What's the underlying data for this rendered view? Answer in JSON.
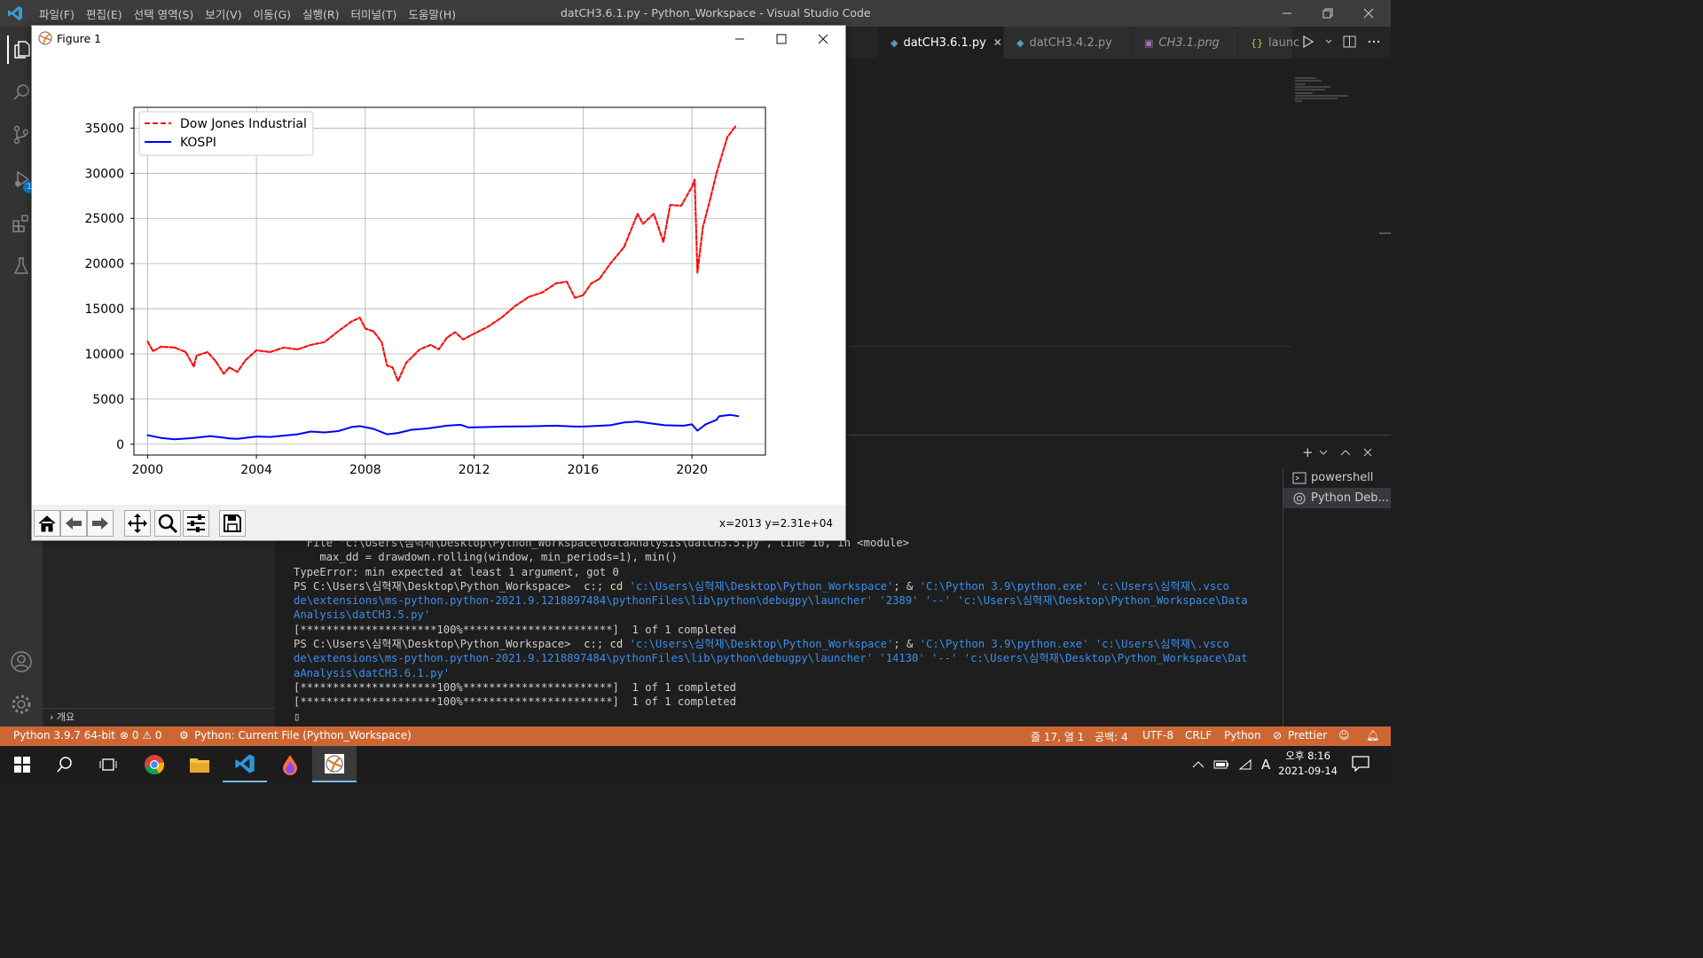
{
  "titlebar": {
    "menu": [
      "파일(F)",
      "편집(E)",
      "선택 영역(S)",
      "보기(V)",
      "이동(G)",
      "실행(R)",
      "터미널(T)",
      "도움말(H)"
    ],
    "title": "datCH3.6.1.py - Python_Workspace - Visual Studio Code"
  },
  "tabs": [
    {
      "label": "datCH3.6.1.py",
      "icon": "python-file-icon",
      "active": true,
      "close": "✕"
    },
    {
      "label": "datCH3.4.2.py",
      "icon": "python-file-icon",
      "active": false
    },
    {
      "label": "CH3.1.png",
      "icon": "image-file-icon",
      "active": false
    },
    {
      "label": "launc",
      "icon": "json-file-icon",
      "active": false
    }
  ],
  "sidebar": {
    "outline_label": "개요"
  },
  "figure": {
    "window_title": "Figure 1",
    "coords": "x=2013 y=2.31e+04",
    "toolbar": [
      "home-icon",
      "back-icon",
      "forward-icon",
      "pan-icon",
      "zoom-icon",
      "configure-icon",
      "save-icon"
    ]
  },
  "chart_data": {
    "type": "line",
    "title": "",
    "xlabel": "",
    "ylabel": "",
    "xlim": [
      1999.5,
      2022.7
    ],
    "ylim": [
      -1200,
      37300
    ],
    "xticks": [
      2000,
      2004,
      2008,
      2012,
      2016,
      2020
    ],
    "yticks": [
      0,
      5000,
      10000,
      15000,
      20000,
      25000,
      30000,
      35000
    ],
    "grid": true,
    "legend": "top-left",
    "series": [
      {
        "name": "Dow Jones Industrial",
        "color": "#ff0000",
        "style": "dashed",
        "x": [
          2000.0,
          2000.2,
          2000.5,
          2001.0,
          2001.4,
          2001.7,
          2001.8,
          2002.2,
          2002.5,
          2002.8,
          2003.0,
          2003.3,
          2003.6,
          2004.0,
          2004.5,
          2005.0,
          2005.5,
          2006.0,
          2006.5,
          2007.0,
          2007.5,
          2007.8,
          2008.0,
          2008.3,
          2008.6,
          2008.8,
          2009.0,
          2009.2,
          2009.5,
          2010.0,
          2010.4,
          2010.7,
          2011.0,
          2011.3,
          2011.6,
          2011.9,
          2012.5,
          2013.0,
          2013.5,
          2014.0,
          2014.5,
          2015.0,
          2015.4,
          2015.7,
          2016.0,
          2016.3,
          2016.6,
          2017.0,
          2017.5,
          2018.0,
          2018.2,
          2018.6,
          2018.95,
          2019.2,
          2019.6,
          2020.0,
          2020.1,
          2020.2,
          2020.4,
          2020.7,
          2020.9,
          2021.0,
          2021.3,
          2021.6
        ],
        "y": [
          11400,
          10300,
          10800,
          10700,
          10200,
          8600,
          9800,
          10200,
          9200,
          7800,
          8500,
          8000,
          9300,
          10400,
          10200,
          10700,
          10500,
          11000,
          11300,
          12500,
          13600,
          14000,
          12800,
          12500,
          11300,
          8700,
          8500,
          7000,
          9000,
          10500,
          11000,
          10500,
          11800,
          12400,
          11600,
          12100,
          13000,
          14000,
          15300,
          16300,
          16800,
          17800,
          18000,
          16200,
          16500,
          17800,
          18300,
          20000,
          21800,
          25500,
          24400,
          25500,
          22400,
          26500,
          26400,
          28500,
          29300,
          19000,
          24000,
          27500,
          30000,
          31000,
          34000,
          35200
        ]
      },
      {
        "name": "KOSPI",
        "color": "#0000ff",
        "style": "solid",
        "x": [
          2000.0,
          2000.5,
          2001.0,
          2001.7,
          2002.3,
          2003.0,
          2003.3,
          2004.0,
          2004.5,
          2005.0,
          2005.5,
          2006.0,
          2006.5,
          2007.0,
          2007.5,
          2007.8,
          2008.3,
          2008.8,
          2009.2,
          2009.7,
          2010.3,
          2011.0,
          2011.5,
          2011.8,
          2012.5,
          2013.0,
          2014.0,
          2015.0,
          2015.7,
          2016.0,
          2017.0,
          2017.5,
          2018.0,
          2018.5,
          2019.0,
          2019.7,
          2020.0,
          2020.2,
          2020.5,
          2020.9,
          2021.0,
          2021.4,
          2021.7
        ],
        "y": [
          1000,
          700,
          550,
          700,
          900,
          650,
          600,
          850,
          800,
          950,
          1100,
          1400,
          1300,
          1450,
          1900,
          2000,
          1700,
          1100,
          1250,
          1600,
          1750,
          2050,
          2150,
          1850,
          1900,
          1950,
          1980,
          2050,
          1950,
          1950,
          2100,
          2400,
          2500,
          2300,
          2100,
          2050,
          2200,
          1500,
          2200,
          2700,
          3100,
          3250,
          3100
        ]
      }
    ]
  },
  "terminal": {
    "lines": [
      [
        {
          "t": "  File \"c:\\Users\\심혁재\\Desktop\\Python_Workspace\\DataAnalysis\\datCH3.5.py\", line 10, in <module>",
          "c": ""
        }
      ],
      [
        {
          "t": "    max_dd = drawdown.rolling(window, min_periods=1), min()",
          "c": ""
        }
      ],
      [
        {
          "t": "TypeError: min expected at least 1 argument, got 0",
          "c": ""
        }
      ],
      [
        {
          "t": "PS C:\\Users\\심혁재\\Desktop\\Python_Workspace>  ",
          "c": ""
        },
        {
          "t": "c:",
          "c": "kw"
        },
        {
          "t": "; ",
          "c": ""
        },
        {
          "t": "cd",
          "c": "kw"
        },
        {
          "t": " 'c:\\Users\\심혁재\\Desktop\\Python_Workspace'",
          "c": "str"
        },
        {
          "t": "; & ",
          "c": ""
        },
        {
          "t": "'C:\\Python 3.9\\python.exe' 'c:\\Users\\심혁재\\.vsco",
          "c": "str"
        }
      ],
      [
        {
          "t": "de\\extensions\\ms-python.python-2021.9.1218897484\\pythonFiles\\lib\\python\\debugpy\\launcher' '2389' '--' 'c:\\Users\\심혁재\\Desktop\\Python_Workspace\\Data",
          "c": "str"
        }
      ],
      [
        {
          "t": "Analysis\\datCH3.5.py'",
          "c": "str"
        }
      ],
      [
        {
          "t": "[*********************100%***********************]  1 of 1 completed",
          "c": ""
        }
      ],
      [
        {
          "t": "PS C:\\Users\\심혁재\\Desktop\\Python_Workspace>  ",
          "c": ""
        },
        {
          "t": "c:",
          "c": "kw"
        },
        {
          "t": "; ",
          "c": ""
        },
        {
          "t": "cd",
          "c": "kw"
        },
        {
          "t": " 'c:\\Users\\심혁재\\Desktop\\Python_Workspace'",
          "c": "str"
        },
        {
          "t": "; & ",
          "c": ""
        },
        {
          "t": "'C:\\Python 3.9\\python.exe' 'c:\\Users\\심혁재\\.vsco",
          "c": "str"
        }
      ],
      [
        {
          "t": "de\\extensions\\ms-python.python-2021.9.1218897484\\pythonFiles\\lib\\python\\debugpy\\launcher' '14130' '--' 'c:\\Users\\심혁재\\Desktop\\Python_Workspace\\Dat",
          "c": "str"
        }
      ],
      [
        {
          "t": "aAnalysis\\datCH3.6.1.py'",
          "c": "str"
        }
      ],
      [
        {
          "t": "[*********************100%***********************]  1 of 1 completed",
          "c": ""
        }
      ],
      [
        {
          "t": "[*********************100%***********************]  1 of 1 completed",
          "c": ""
        }
      ],
      [
        {
          "t": "▯",
          "c": ""
        }
      ]
    ],
    "list": [
      {
        "label": "powershell",
        "icon": "terminal-icon",
        "selected": false
      },
      {
        "label": "Python Deb...",
        "icon": "debug-icon",
        "selected": true
      }
    ]
  },
  "statusbar": {
    "python": "Python 3.9.7 64-bit",
    "problems": "⊗ 0 ⚠ 0",
    "debug": "Python: Current File (Python_Workspace)",
    "position": "줄 17, 열 1",
    "spaces": "공백: 4",
    "encoding": "UTF-8",
    "eol": "CRLF",
    "language": "Python",
    "prettier": "Prettier"
  },
  "taskbar": {
    "time": "오후 8:16",
    "date": "2021-09-14",
    "ime": "A"
  },
  "colors": {
    "statusbar": "#cc6633",
    "dow": "#ff0000",
    "kospi": "#0000ff"
  }
}
